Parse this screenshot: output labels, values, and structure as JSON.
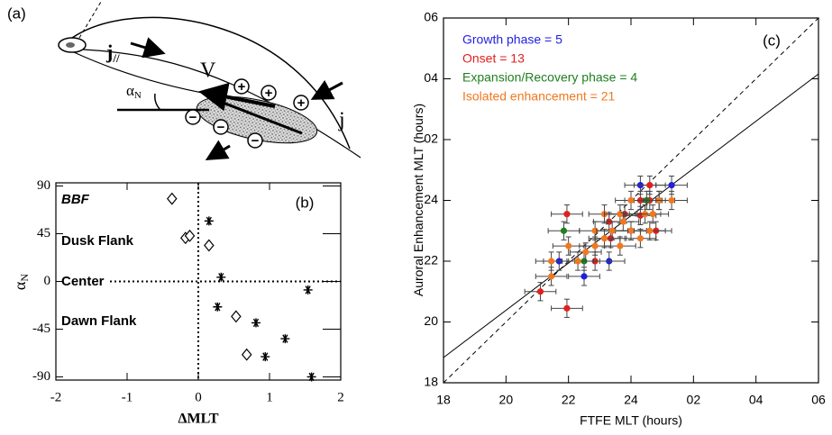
{
  "diagram": {
    "panel_label": "(a)",
    "j_parallel": "j",
    "j_parallel_sub": "//",
    "velocity": "V",
    "alpha": "α",
    "alpha_sub": "N",
    "current": "j",
    "plus_signs": [
      "+",
      "+",
      "+"
    ],
    "minus_signs": [
      "−",
      "−",
      "−"
    ]
  },
  "chart_data": [
    {
      "type": "scatter",
      "panel_label": "(b)",
      "xlabel": "ΔMLT",
      "ylabel": "α",
      "ylabel_sub": "N",
      "xlim": [
        -2,
        2
      ],
      "ylim": [
        -93,
        93
      ],
      "xticks": [
        -2,
        -1,
        0,
        1,
        2
      ],
      "yticks": [
        90,
        45,
        0,
        -45,
        -90
      ],
      "zero_lines": true,
      "annotations": [
        "BBF",
        "Dusk Flank",
        "Center",
        "Dawn Flank"
      ],
      "series": [
        {
          "marker": "diamond",
          "color": "#000000",
          "x": [
            -0.37,
            -0.18,
            -0.12,
            0.15,
            0.53,
            0.68
          ],
          "values": [
            78,
            41,
            43,
            34,
            -33,
            -69
          ]
        },
        {
          "marker": "asterisk",
          "color": "#000000",
          "x": [
            0.15,
            0.32,
            0.27,
            0.81,
            0.94,
            1.22,
            1.54,
            1.59
          ],
          "values": [
            57,
            4,
            -24,
            -39,
            -71,
            -54,
            -8,
            -90
          ]
        }
      ]
    },
    {
      "type": "scatter",
      "panel_label": "(c)",
      "xlabel": "FTFE MLT (hours)",
      "ylabel": "Auroral Enhancement MLT (hours)",
      "xlim": [
        18,
        30
      ],
      "ylim": [
        18,
        30
      ],
      "xticks": [
        18,
        20,
        22,
        24,
        {
          "value": 26,
          "label": "02"
        },
        {
          "value": 28,
          "label": "04"
        },
        {
          "value": 30,
          "label": "06"
        }
      ],
      "yticks": [
        18,
        20,
        22,
        24,
        {
          "value": 26,
          "label": "02"
        },
        {
          "value": 28,
          "label": "04"
        },
        {
          "value": 30,
          "label": "06"
        }
      ],
      "lines": [
        {
          "style": "dashed",
          "x": [
            18,
            30
          ],
          "values": [
            18,
            30
          ]
        },
        {
          "style": "solid",
          "x": [
            18,
            30
          ],
          "values": [
            18.83,
            28.16
          ]
        }
      ],
      "series": [
        {
          "name": "Growth phase = 5",
          "color": "#1f1fe0",
          "xerr": 0.5,
          "yerr": 0.3,
          "x": [
            24.3,
            25.3,
            21.7,
            22.5,
            23.3
          ],
          "values": [
            24.5,
            24.5,
            22.0,
            21.5,
            22.0
          ]
        },
        {
          "name": "Onset = 13",
          "color": "#e01f1f",
          "xerr": 0.5,
          "yerr": 0.3,
          "x": [
            21.1,
            21.95,
            21.95,
            24.6,
            24.6,
            24.3,
            23.8,
            23.35,
            24.0,
            24.8,
            22.85,
            23.3,
            24.3
          ],
          "values": [
            21.0,
            20.45,
            23.55,
            24.5,
            24.0,
            24.0,
            23.55,
            22.75,
            23.0,
            23.0,
            22.0,
            23.3,
            23.5
          ]
        },
        {
          "name": "Expansion/Recovery phase = 4",
          "color": "#1f7f1f",
          "xerr": 0.5,
          "yerr": 0.3,
          "x": [
            21.85,
            22.5,
            24.9,
            24.5
          ],
          "values": [
            23.0,
            22.0,
            24.0,
            24.0
          ]
        },
        {
          "name": "Isolated enhancement = 21",
          "color": "#f07820",
          "xerr": 0.5,
          "yerr": 0.3,
          "x": [
            21.45,
            21.45,
            22.3,
            22.85,
            22.85,
            23.15,
            23.65,
            24.0,
            24.9,
            25.3,
            23.65,
            24.0,
            24.6,
            24.45,
            23.4,
            23.15,
            22.55,
            23.75,
            24.7,
            24.3,
            22.0
          ],
          "values": [
            22.0,
            21.5,
            22.0,
            22.5,
            23.0,
            23.55,
            23.55,
            24.0,
            24.0,
            24.0,
            22.5,
            23.0,
            23.0,
            23.55,
            23.0,
            22.75,
            22.3,
            23.3,
            23.55,
            22.75,
            22.5
          ]
        }
      ]
    }
  ]
}
